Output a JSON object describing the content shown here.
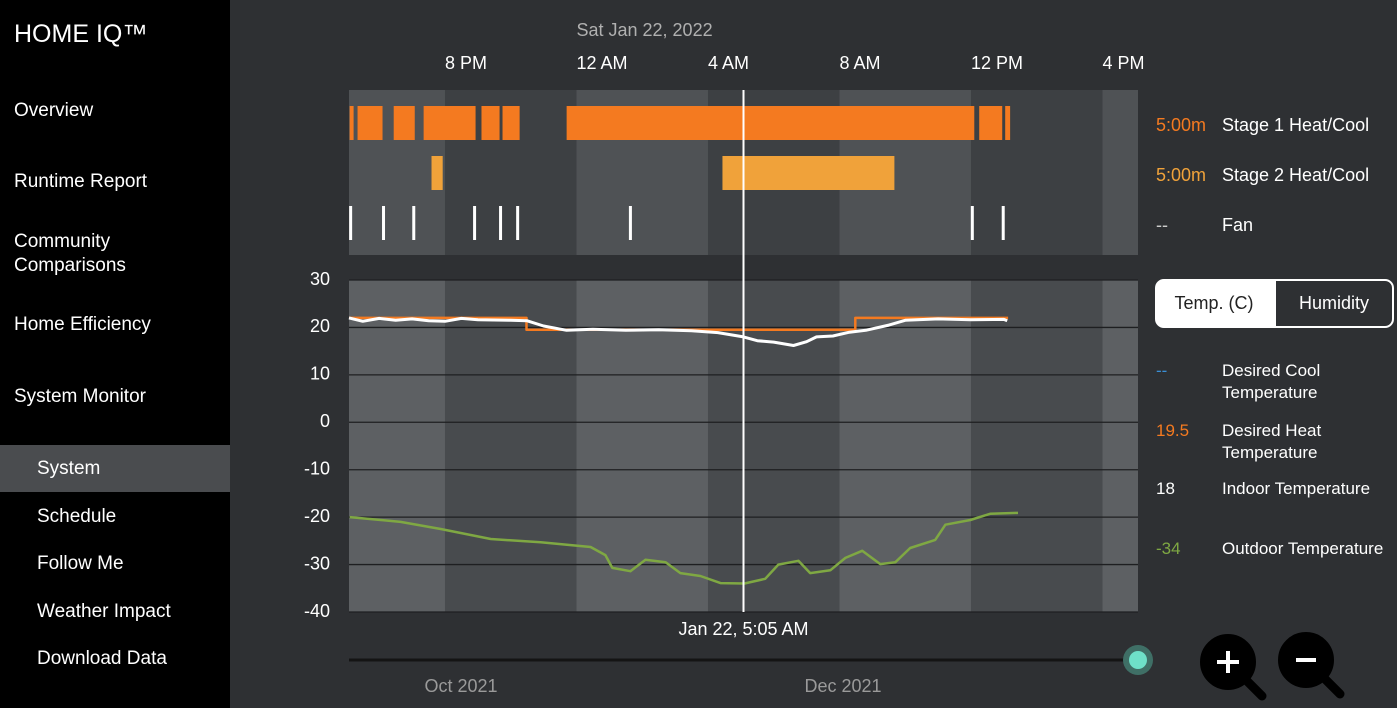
{
  "sidebar": {
    "title": "HOME IQ™",
    "items": [
      "Overview",
      "Runtime Report",
      "Community Comparisons",
      "Home Efficiency",
      "System Monitor"
    ],
    "subitems": [
      "System",
      "Schedule",
      "Follow Me",
      "Weather Impact",
      "Download Data"
    ]
  },
  "chart_data": {
    "type": "timeline",
    "date_label": "Sat Jan 22, 2022",
    "xlim": [
      -6.92,
      17.08
    ],
    "xticks": [
      {
        "value": -4,
        "label": "8 PM"
      },
      {
        "value": 0,
        "label": "12 AM"
      },
      {
        "value": 4,
        "label": "4 AM"
      },
      {
        "value": 8,
        "label": "8 AM"
      },
      {
        "value": 12,
        "label": "12 PM"
      },
      {
        "value": 16,
        "label": "4 PM"
      }
    ],
    "cursor": {
      "x": 5.08,
      "label": "Jan 22, 5:05 AM"
    },
    "runtime": [
      {
        "name": "Stage 1 Heat/Cool",
        "readout": "5:00m",
        "color": "#f47a20",
        "intervals": [
          [
            -6.9,
            -6.78
          ],
          [
            -6.66,
            -5.9
          ],
          [
            -5.56,
            -4.92
          ],
          [
            -4.65,
            -3.07
          ],
          [
            -2.89,
            -2.34
          ],
          [
            -2.25,
            -1.73
          ],
          [
            -0.3,
            12.1
          ],
          [
            12.25,
            12.95
          ],
          [
            13.04,
            13.19
          ]
        ]
      },
      {
        "name": "Stage 2 Heat/Cool",
        "readout": "5:00m",
        "color": "#f0a23a",
        "intervals": [
          [
            -4.41,
            -4.07
          ],
          [
            4.44,
            9.67
          ]
        ]
      },
      {
        "name": "Fan",
        "readout": "--",
        "color": "#ffffff",
        "events": [
          -6.87,
          -5.87,
          -4.95,
          -3.1,
          -2.31,
          -1.79,
          1.64,
          12.04,
          12.98
        ]
      }
    ],
    "toggle": [
      "Temp. (C)",
      "Humidity"
    ],
    "ylim": [
      -40,
      30
    ],
    "yticks": [
      -40,
      -30,
      -20,
      -10,
      0,
      10,
      20,
      30
    ],
    "grid": true,
    "series": [
      {
        "name": "Desired Cool Temperature",
        "readout": "--",
        "color": "#3a8fd6"
      },
      {
        "name": "Desired Heat Temperature",
        "readout": "19.5",
        "color": "#f47a20",
        "x": [
          -6.92,
          -1.52,
          -1.52,
          8.48,
          8.48,
          13.13
        ],
        "values": [
          22,
          22,
          19.5,
          19.5,
          22,
          22
        ]
      },
      {
        "name": "Indoor Temperature",
        "readout": "18",
        "color": "#ffffff",
        "x": [
          -6.92,
          -6.5,
          -6,
          -5.5,
          -5,
          -4.5,
          -4,
          -3.5,
          -3,
          -2,
          -1.5,
          -1,
          -0.3,
          0.5,
          1.5,
          2.5,
          3.5,
          4.3,
          5.08,
          5.5,
          6,
          6.6,
          7,
          7.3,
          7.8,
          8.3,
          8.8,
          9.5,
          10,
          11,
          12,
          13,
          13.1
        ],
        "values": [
          22,
          21.3,
          21.9,
          21.5,
          21.8,
          21.4,
          21.3,
          21.9,
          21.6,
          21.5,
          21.4,
          20.3,
          19.4,
          19.6,
          19.4,
          19.5,
          19.3,
          18.9,
          18,
          17.2,
          16.9,
          16.2,
          17,
          18,
          18.2,
          19,
          19.4,
          20.5,
          21.5,
          21.8,
          21.6,
          21.7,
          21.4
        ]
      },
      {
        "name": "Outdoor Temperature",
        "readout": "-34",
        "color": "#7fa843",
        "x": [
          -6.9,
          -5.35,
          -4.13,
          -2.61,
          -1.09,
          0.43,
          0.88,
          1.09,
          1.64,
          2.1,
          2.71,
          3.16,
          3.77,
          4.38,
          5.11,
          5.74,
          6.14,
          6.75,
          7.11,
          7.72,
          8.18,
          8.69,
          9.24,
          9.7,
          10.15,
          10.91,
          11.22,
          11.98,
          12.58,
          13.43
        ],
        "values": [
          -20,
          -21,
          -22.5,
          -24.6,
          -25.3,
          -26.3,
          -28,
          -30.7,
          -31.4,
          -29,
          -29.5,
          -31.8,
          -32.4,
          -33.9,
          -34,
          -33,
          -30,
          -29.2,
          -31.8,
          -31.2,
          -28.6,
          -27.1,
          -29.9,
          -29.5,
          -26.5,
          -24.8,
          -21.6,
          -20.6,
          -19.3,
          -19.1
        ]
      }
    ],
    "range_labels": [
      "Oct 2021",
      "Dec 2021"
    ]
  }
}
